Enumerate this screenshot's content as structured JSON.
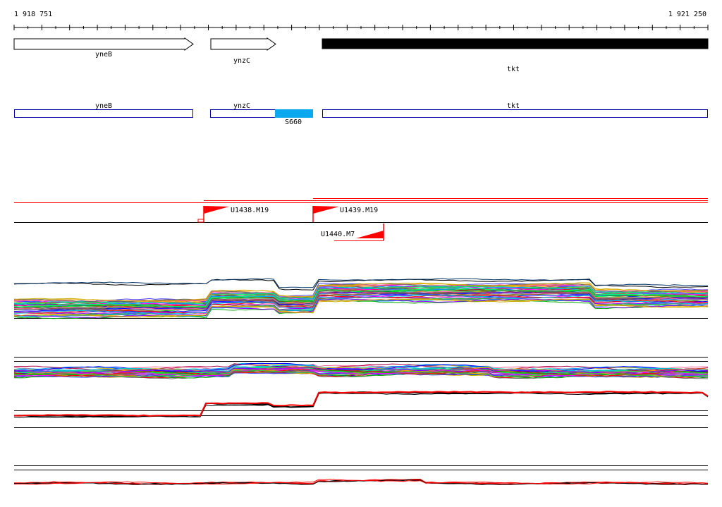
{
  "coordinates": {
    "start": "1 918 751",
    "end": "1 921 250"
  },
  "genes": [
    {
      "name": "yneB",
      "strand": "+"
    },
    {
      "name": "ynzC",
      "strand": "+"
    },
    {
      "name": "tkt",
      "strand": "+"
    }
  ],
  "segments": [
    {
      "name": "yneB",
      "highlight": false
    },
    {
      "name": "ynzC",
      "highlight": false
    },
    {
      "name": "S660",
      "highlight": true
    },
    {
      "name": "tkt",
      "highlight": false
    }
  ],
  "transcription_sites": [
    {
      "name": "U1438.M19",
      "strand": "+"
    },
    {
      "name": "U1439.M19",
      "strand": "+"
    },
    {
      "name": "U1440.M7",
      "strand": "-"
    }
  ],
  "colors": {
    "gene_outline": "#000000",
    "gene_filled": "#000000",
    "segment_outline": "#0000aa",
    "segment_highlight": "#0aa8ee",
    "site": "#ff0000"
  }
}
